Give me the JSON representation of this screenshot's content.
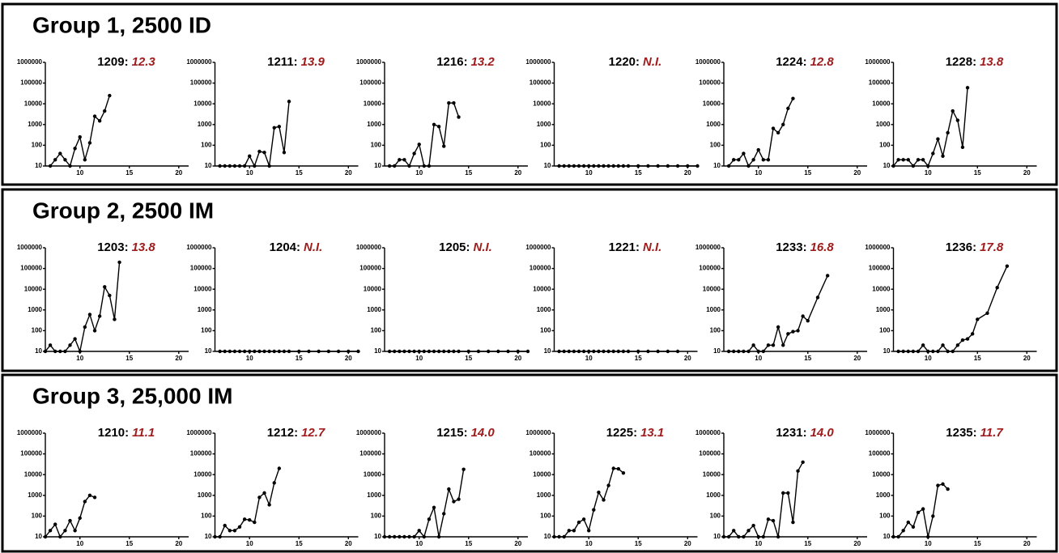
{
  "groups": [
    {
      "title": "Group 1, 2500 ID"
    },
    {
      "title": "Group 2, 2500 IM"
    },
    {
      "title": "Group 3, 25,000 IM"
    }
  ],
  "chart_data": [
    {
      "type": "line",
      "title": "1209:",
      "subtitle": "12.3",
      "color": "#000000",
      "log_y": true,
      "xlim": [
        6.5,
        21
      ],
      "xticks": [
        10,
        15,
        20
      ],
      "ylim": [
        10,
        1000000
      ],
      "yticks": [
        10,
        100,
        1000,
        10000,
        100000,
        1000000
      ],
      "x": [
        7,
        7.5,
        8,
        8.5,
        9,
        9.5,
        10,
        10.5,
        11,
        11.5,
        12,
        12.5,
        13
      ],
      "values": [
        10,
        20,
        40,
        20,
        10,
        70,
        250,
        20,
        130,
        2500,
        1500,
        4500,
        25000
      ]
    },
    {
      "type": "line",
      "title": "1211:",
      "subtitle": "13.9",
      "color": "#000000",
      "log_y": true,
      "xlim": [
        6.5,
        21
      ],
      "xticks": [
        10,
        15,
        20
      ],
      "ylim": [
        10,
        1000000
      ],
      "yticks": [
        10,
        100,
        1000,
        10000,
        100000,
        1000000
      ],
      "x": [
        7,
        7.5,
        8,
        8.5,
        9,
        9.5,
        10,
        10.5,
        11,
        11.5,
        12,
        12.5,
        13,
        13.5,
        14
      ],
      "values": [
        10,
        10,
        10,
        10,
        10,
        10,
        30,
        10,
        50,
        45,
        10,
        700,
        800,
        45,
        13000
      ]
    },
    {
      "type": "line",
      "title": "1216:",
      "subtitle": "13.2",
      "color": "#000000",
      "log_y": true,
      "xlim": [
        6.5,
        21
      ],
      "xticks": [
        10,
        15,
        20
      ],
      "ylim": [
        10,
        1000000
      ],
      "yticks": [
        10,
        100,
        1000,
        10000,
        100000,
        1000000
      ],
      "x": [
        7,
        7.5,
        8,
        8.5,
        9,
        9.5,
        10,
        10.5,
        11,
        11.5,
        12,
        12.5,
        13,
        13.5,
        14
      ],
      "values": [
        10,
        10,
        20,
        20,
        10,
        40,
        110,
        10,
        10,
        1000,
        800,
        90,
        11000,
        11000,
        2300
      ]
    },
    {
      "type": "line",
      "title": "1220:",
      "subtitle": "N.I.",
      "color": "#000000",
      "log_y": true,
      "xlim": [
        6.5,
        21
      ],
      "xticks": [
        10,
        15,
        20
      ],
      "ylim": [
        10,
        1000000
      ],
      "yticks": [
        10,
        100,
        1000,
        10000,
        100000,
        1000000
      ],
      "x": [
        7,
        7.5,
        8,
        8.5,
        9,
        9.5,
        10,
        10.5,
        11,
        11.5,
        12,
        12.5,
        13,
        13.5,
        14,
        15,
        16,
        17,
        18,
        19,
        20,
        21
      ],
      "values": [
        10,
        10,
        10,
        10,
        10,
        10,
        10,
        10,
        10,
        10,
        10,
        10,
        10,
        10,
        10,
        10,
        10,
        10,
        10,
        10,
        10,
        10
      ]
    },
    {
      "type": "line",
      "title": "1224:",
      "subtitle": "12.8",
      "color": "#000000",
      "log_y": true,
      "xlim": [
        6.5,
        21
      ],
      "xticks": [
        10,
        15,
        20
      ],
      "ylim": [
        10,
        1000000
      ],
      "yticks": [
        10,
        100,
        1000,
        10000,
        100000,
        1000000
      ],
      "x": [
        7,
        7.5,
        8,
        8.5,
        9,
        9.5,
        10,
        10.5,
        11,
        11.5,
        12,
        12.5,
        13,
        13.5
      ],
      "values": [
        10,
        20,
        20,
        40,
        10,
        20,
        60,
        20,
        20,
        650,
        400,
        1000,
        6000,
        18000
      ]
    },
    {
      "type": "line",
      "title": "1228:",
      "subtitle": "13.8",
      "color": "#000000",
      "log_y": true,
      "xlim": [
        6.5,
        21
      ],
      "xticks": [
        10,
        15,
        20
      ],
      "ylim": [
        10,
        1000000
      ],
      "yticks": [
        10,
        100,
        1000,
        10000,
        100000,
        1000000
      ],
      "x": [
        6.5,
        7,
        7.5,
        8,
        8.5,
        9,
        9.5,
        10,
        10.5,
        11,
        11.5,
        12,
        12.5,
        13,
        13.5,
        14
      ],
      "values": [
        10,
        20,
        20,
        20,
        10,
        20,
        20,
        10,
        40,
        200,
        30,
        400,
        4500,
        1600,
        80,
        60000
      ]
    },
    {
      "type": "line",
      "title": "1203:",
      "subtitle": "13.8",
      "color": "#000000",
      "log_y": true,
      "xlim": [
        6.5,
        21
      ],
      "xticks": [
        10,
        15,
        20
      ],
      "ylim": [
        10,
        1000000
      ],
      "yticks": [
        10,
        100,
        1000,
        10000,
        100000,
        1000000
      ],
      "x": [
        6.5,
        7,
        7.5,
        8,
        8.5,
        9,
        9.5,
        10,
        10.5,
        11,
        11.5,
        12,
        12.5,
        13,
        13.5,
        14
      ],
      "values": [
        10,
        20,
        10,
        10,
        10,
        20,
        40,
        10,
        150,
        600,
        100,
        500,
        13000,
        5000,
        350,
        200000
      ]
    },
    {
      "type": "line",
      "title": "1204:",
      "subtitle": "N.I.",
      "color": "#000000",
      "log_y": true,
      "xlim": [
        6.5,
        21
      ],
      "xticks": [
        10,
        15,
        20
      ],
      "ylim": [
        10,
        1000000
      ],
      "yticks": [
        10,
        100,
        1000,
        10000,
        100000,
        1000000
      ],
      "x": [
        7,
        7.5,
        8,
        8.5,
        9,
        9.5,
        10,
        10.5,
        11,
        11.5,
        12,
        12.5,
        13,
        13.5,
        14,
        15,
        16,
        17,
        18,
        19,
        20,
        21
      ],
      "values": [
        10,
        10,
        10,
        10,
        10,
        10,
        10,
        10,
        10,
        10,
        10,
        10,
        10,
        10,
        10,
        10,
        10,
        10,
        10,
        10,
        10,
        10
      ]
    },
    {
      "type": "line",
      "title": "1205:",
      "subtitle": "N.I.",
      "color": "#000000",
      "log_y": true,
      "xlim": [
        6.5,
        21
      ],
      "xticks": [
        10,
        15,
        20
      ],
      "ylim": [
        10,
        1000000
      ],
      "yticks": [
        10,
        100,
        1000,
        10000,
        100000,
        1000000
      ],
      "x": [
        7,
        7.5,
        8,
        8.5,
        9,
        9.5,
        10,
        10.5,
        11,
        11.5,
        12,
        12.5,
        13,
        13.5,
        14,
        15,
        16,
        17,
        18,
        19,
        20,
        21
      ],
      "values": [
        10,
        10,
        10,
        10,
        10,
        10,
        10,
        10,
        10,
        10,
        10,
        10,
        10,
        10,
        10,
        10,
        10,
        10,
        10,
        10,
        10,
        10
      ]
    },
    {
      "type": "line",
      "title": "1221:",
      "subtitle": "N.I.",
      "color": "#000000",
      "log_y": true,
      "xlim": [
        6.5,
        21
      ],
      "xticks": [
        10,
        15,
        20
      ],
      "ylim": [
        10,
        1000000
      ],
      "yticks": [
        10,
        100,
        1000,
        10000,
        100000,
        1000000
      ],
      "x": [
        7,
        7.5,
        8,
        8.5,
        9,
        9.5,
        10,
        10.5,
        11,
        11.5,
        12,
        12.5,
        13,
        13.5,
        14,
        15,
        16,
        17,
        18,
        19
      ],
      "values": [
        10,
        10,
        10,
        10,
        10,
        10,
        10,
        10,
        10,
        10,
        10,
        10,
        10,
        10,
        10,
        10,
        10,
        10,
        10,
        10
      ]
    },
    {
      "type": "line",
      "title": "1233:",
      "subtitle": "16.8",
      "color": "#000000",
      "log_y": true,
      "xlim": [
        6.5,
        21
      ],
      "xticks": [
        10,
        15,
        20
      ],
      "ylim": [
        10,
        1000000
      ],
      "yticks": [
        10,
        100,
        1000,
        10000,
        100000,
        1000000
      ],
      "x": [
        7,
        7.5,
        8,
        8.5,
        9,
        9.5,
        10,
        10.5,
        11,
        11.5,
        12,
        12.5,
        13,
        13.5,
        14,
        14.5,
        15,
        16,
        17
      ],
      "values": [
        10,
        10,
        10,
        10,
        10,
        20,
        10,
        10,
        20,
        20,
        150,
        20,
        70,
        90,
        100,
        500,
        300,
        4000,
        45000
      ]
    },
    {
      "type": "line",
      "title": "1236:",
      "subtitle": "17.8",
      "color": "#000000",
      "log_y": true,
      "xlim": [
        6.5,
        21
      ],
      "xticks": [
        10,
        15,
        20
      ],
      "ylim": [
        10,
        1000000
      ],
      "yticks": [
        10,
        100,
        1000,
        10000,
        100000,
        1000000
      ],
      "x": [
        7,
        7.5,
        8,
        8.5,
        9,
        9.5,
        10,
        10.5,
        11,
        11.5,
        12,
        12.5,
        13,
        13.5,
        14,
        14.5,
        15,
        16,
        17,
        18
      ],
      "values": [
        10,
        10,
        10,
        10,
        10,
        20,
        10,
        10,
        10,
        20,
        10,
        10,
        20,
        35,
        40,
        70,
        350,
        700,
        12000,
        130000
      ]
    },
    {
      "type": "line",
      "title": "1210:",
      "subtitle": "11.1",
      "color": "#000000",
      "log_y": true,
      "xlim": [
        6.5,
        21
      ],
      "xticks": [
        10,
        15,
        20
      ],
      "ylim": [
        10,
        1000000
      ],
      "yticks": [
        10,
        100,
        1000,
        10000,
        100000,
        1000000
      ],
      "x": [
        6.5,
        7,
        7.5,
        8,
        8.5,
        9,
        9.5,
        10,
        10.5,
        11,
        11.5
      ],
      "values": [
        10,
        20,
        40,
        10,
        20,
        60,
        20,
        80,
        500,
        1000,
        800
      ]
    },
    {
      "type": "line",
      "title": "1212:",
      "subtitle": "12.7",
      "color": "#000000",
      "log_y": true,
      "xlim": [
        6.5,
        21
      ],
      "xticks": [
        10,
        15,
        20
      ],
      "ylim": [
        10,
        1000000
      ],
      "yticks": [
        10,
        100,
        1000,
        10000,
        100000,
        1000000
      ],
      "x": [
        6.5,
        7,
        7.5,
        8,
        8.5,
        9,
        9.5,
        10,
        10.5,
        11,
        11.5,
        12,
        12.5,
        13
      ],
      "values": [
        10,
        10,
        35,
        20,
        20,
        30,
        70,
        65,
        50,
        800,
        1300,
        350,
        4000,
        20000
      ]
    },
    {
      "type": "line",
      "title": "1215:",
      "subtitle": "14.0",
      "color": "#000000",
      "log_y": true,
      "xlim": [
        6.5,
        21
      ],
      "xticks": [
        10,
        15,
        20
      ],
      "ylim": [
        10,
        1000000
      ],
      "yticks": [
        10,
        100,
        1000,
        10000,
        100000,
        1000000
      ],
      "x": [
        6.5,
        7,
        7.5,
        8,
        8.5,
        9,
        9.5,
        10,
        10.5,
        11,
        11.5,
        12,
        12.5,
        13,
        13.5,
        14,
        14.5
      ],
      "values": [
        10,
        10,
        10,
        10,
        10,
        10,
        10,
        20,
        10,
        70,
        260,
        10,
        130,
        2000,
        500,
        650,
        18000
      ]
    },
    {
      "type": "line",
      "title": "1225:",
      "subtitle": "13.1",
      "color": "#000000",
      "log_y": true,
      "xlim": [
        6.5,
        21
      ],
      "xticks": [
        10,
        15,
        20
      ],
      "ylim": [
        10,
        1000000
      ],
      "yticks": [
        10,
        100,
        1000,
        10000,
        100000,
        1000000
      ],
      "x": [
        6.5,
        7,
        7.5,
        8,
        8.5,
        9,
        9.5,
        10,
        10.5,
        11,
        11.5,
        12,
        12.5,
        13,
        13.5
      ],
      "values": [
        10,
        10,
        10,
        20,
        20,
        50,
        70,
        20,
        200,
        1400,
        600,
        3000,
        20000,
        19000,
        12000
      ]
    },
    {
      "type": "line",
      "title": "1231:",
      "subtitle": "14.0",
      "color": "#000000",
      "log_y": true,
      "xlim": [
        6.5,
        21
      ],
      "xticks": [
        10,
        15,
        20
      ],
      "ylim": [
        10,
        1000000
      ],
      "yticks": [
        10,
        100,
        1000,
        10000,
        100000,
        1000000
      ],
      "x": [
        6.5,
        7,
        7.5,
        8,
        8.5,
        9,
        9.5,
        10,
        10.5,
        11,
        11.5,
        12,
        12.5,
        13,
        13.5,
        14,
        14.5
      ],
      "values": [
        10,
        10,
        20,
        10,
        10,
        20,
        35,
        10,
        10,
        70,
        60,
        10,
        1300,
        1300,
        50,
        15000,
        40000
      ]
    },
    {
      "type": "line",
      "title": "1235:",
      "subtitle": "11.7",
      "color": "#000000",
      "log_y": true,
      "xlim": [
        6.5,
        21
      ],
      "xticks": [
        10,
        15,
        20
      ],
      "ylim": [
        10,
        1000000
      ],
      "yticks": [
        10,
        100,
        1000,
        10000,
        100000,
        1000000
      ],
      "x": [
        6.5,
        7,
        7.5,
        8,
        8.5,
        9,
        9.5,
        10,
        10.5,
        11,
        11.5,
        12
      ],
      "values": [
        10,
        10,
        20,
        50,
        30,
        150,
        220,
        10,
        100,
        3000,
        3500,
        2000
      ]
    }
  ]
}
